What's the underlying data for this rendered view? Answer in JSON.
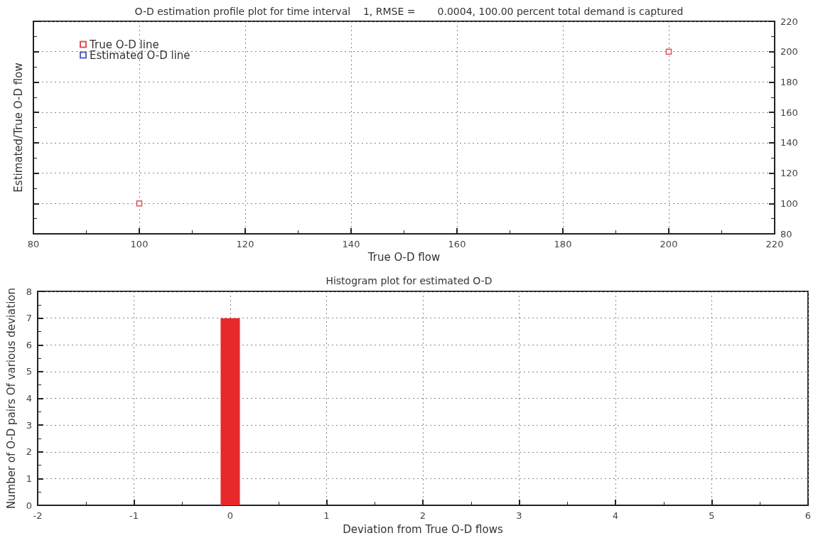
{
  "chart_data": [
    {
      "type": "scatter",
      "title": "O-D estimation profile plot for time interval    1, RMSE =       0.0004, 100.00 percent total demand is captured",
      "xlabel": "True O-D flow",
      "ylabel": "Estimated/True O-D flow",
      "series": [
        {
          "name": "True O-D line",
          "color": "#d9262e",
          "x": [
            100,
            200
          ],
          "values": [
            100,
            200
          ]
        },
        {
          "name": "Estimated O-D line",
          "color": "#2a3bb5",
          "values": [
            null,
            null
          ]
        }
      ],
      "xlim": [
        80,
        220
      ],
      "xticks": [
        80,
        100,
        120,
        140,
        160,
        180,
        200,
        220
      ],
      "ylim": [
        80,
        220
      ],
      "yticks": [
        80,
        100,
        120,
        140,
        160,
        180,
        200,
        220
      ],
      "grid": true,
      "legend": "top left",
      "marker": "square"
    },
    {
      "type": "histogram",
      "title": "Histogram plot for estimated O-D",
      "xlabel": "Deviation from True O-D flows",
      "ylabel": "Number of O-D pairs Of various deviation",
      "bins": [
        -0.1,
        0.1
      ],
      "values": [
        7
      ],
      "color": "#e8292b",
      "xlim": [
        -2,
        6
      ],
      "xticks": [
        -2,
        -1,
        0,
        1,
        2,
        3,
        4,
        5,
        6
      ],
      "ylim": [
        0,
        8
      ],
      "yticks": [
        0,
        1,
        2,
        3,
        4,
        5,
        6,
        7,
        8
      ],
      "grid": true
    }
  ]
}
